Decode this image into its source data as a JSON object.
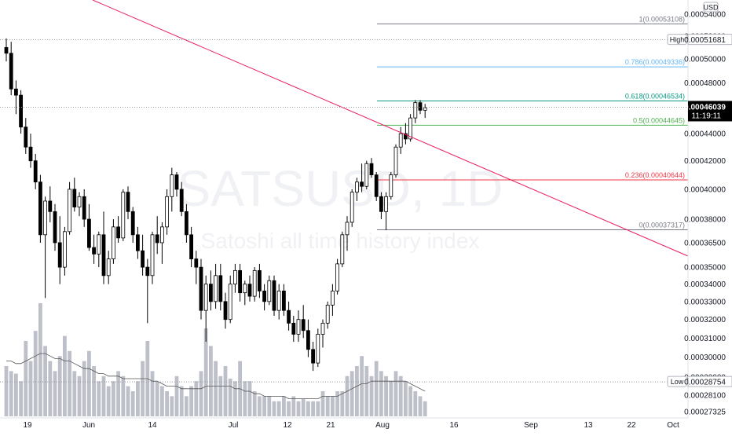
{
  "chart_data": {
    "type": "candlestick",
    "symbol_watermark": "SATSUSD, 1D",
    "watermark_subtitle": "Satoshi all time history index",
    "currency": "USD",
    "y_scale": "log",
    "y_ticks": [
      "0.00054000",
      "0.00052000",
      "0.00050000",
      "0.00048000",
      "0.00044000",
      "0.00042000",
      "0.00040000",
      "0.00038000",
      "0.00036500",
      "0.00035000",
      "0.00034000",
      "0.00033000",
      "0.00032000",
      "0.00031000",
      "0.00030000",
      "0.00029000",
      "0.00028100",
      "0.00027325"
    ],
    "x_labels": [
      "19",
      "Jun",
      "14",
      "Jul",
      "12",
      "21",
      "Aug",
      "16",
      "Sep",
      "13",
      "22",
      "Oct"
    ],
    "last_price": {
      "value": "0.00046039",
      "countdown": "11:19:11"
    },
    "high": {
      "label": "High",
      "value": "0.00051681"
    },
    "low": {
      "label": "Low",
      "value": "0.00028754"
    },
    "fib_levels": [
      {
        "ratio": "1",
        "value": "0.00053108",
        "color": "#787b86",
        "text": "1(0.00053108)"
      },
      {
        "ratio": "0.786",
        "value": "0.00049336",
        "color": "#64b5f6",
        "text": "0.786(0.00049336)"
      },
      {
        "ratio": "0.618",
        "value": "0.00046534",
        "color": "#089981",
        "text": "0.618(0.00046534)"
      },
      {
        "ratio": "0.5",
        "value": "0.00044645",
        "color": "#4caf50",
        "text": "0.5(0.00044645)"
      },
      {
        "ratio": "0.236",
        "value": "0.00040644",
        "color": "#f23645",
        "text": "0.236(0.00040644)"
      },
      {
        "ratio": "0",
        "value": "0.00037317",
        "color": "#787b86",
        "text": "0(0.00037317)"
      }
    ],
    "trendline_color": "#e91e63",
    "candle_up_color": "#ffffff",
    "candle_down_color": "#000000",
    "volume_color": "#b2b5be",
    "candles": [
      [
        0.00051,
        0.000518,
        0.000498,
        0.000505
      ],
      [
        0.000505,
        0.000515,
        0.00047,
        0.000475
      ],
      [
        0.000475,
        0.000482,
        0.000455,
        0.00047
      ],
      [
        0.00047,
        0.000474,
        0.00044,
        0.000445
      ],
      [
        0.000445,
        0.000452,
        0.000425,
        0.00043
      ],
      [
        0.00043,
        0.00044,
        0.000415,
        0.00042
      ],
      [
        0.00042,
        0.000425,
        0.0004,
        0.000405
      ],
      [
        0.000405,
        0.00041,
        0.000365,
        0.00037
      ],
      [
        0.00037,
        0.000395,
        0.000332,
        0.000392
      ],
      [
        0.000392,
        0.000402,
        0.000378,
        0.000385
      ],
      [
        0.000385,
        0.00039,
        0.00036,
        0.000365
      ],
      [
        0.000365,
        0.000382,
        0.00034,
        0.00035
      ],
      [
        0.00035,
        0.000375,
        0.000345,
        0.000372
      ],
      [
        0.000372,
        0.000405,
        0.00037,
        0.0004
      ],
      [
        0.0004,
        0.000408,
        0.000385,
        0.000388
      ],
      [
        0.000388,
        0.000398,
        0.000382,
        0.000395
      ],
      [
        0.000395,
        0.0004,
        0.000375,
        0.00038
      ],
      [
        0.00038,
        0.00039,
        0.00036,
        0.000362
      ],
      [
        0.000362,
        0.00037,
        0.000352,
        0.000358
      ],
      [
        0.000358,
        0.000372,
        0.00035,
        0.00037
      ],
      [
        0.00037,
        0.000385,
        0.00034,
        0.000345
      ],
      [
        0.000345,
        0.00036,
        0.00034,
        0.000355
      ],
      [
        0.000355,
        0.00038,
        0.000352,
        0.000375
      ],
      [
        0.000375,
        0.000382,
        0.000365,
        0.000368
      ],
      [
        0.000368,
        0.0004,
        0.000366,
        0.000398
      ],
      [
        0.000398,
        0.000402,
        0.00038,
        0.000385
      ],
      [
        0.000385,
        0.000388,
        0.000365,
        0.00037
      ],
      [
        0.00037,
        0.000375,
        0.000355,
        0.00036
      ],
      [
        0.00036,
        0.00037,
        0.000345,
        0.00035
      ],
      [
        0.00035,
        0.000355,
        0.000318,
        0.000345
      ],
      [
        0.000345,
        0.000372,
        0.00034,
        0.00037
      ],
      [
        0.00037,
        0.000382,
        0.000358,
        0.000365
      ],
      [
        0.000365,
        0.000378,
        0.000352,
        0.000375
      ],
      [
        0.000375,
        0.0004,
        0.00037,
        0.000395
      ],
      [
        0.000395,
        0.000415,
        0.000385,
        0.00041
      ],
      [
        0.00041,
        0.000412,
        0.000395,
        0.0004
      ],
      [
        0.0004,
        0.000405,
        0.000382,
        0.000385
      ],
      [
        0.000385,
        0.00039,
        0.000365,
        0.00037
      ],
      [
        0.00037,
        0.000375,
        0.00035,
        0.000355
      ],
      [
        0.000355,
        0.00036,
        0.00034,
        0.00035
      ],
      [
        0.00035,
        0.000355,
        0.00032,
        0.000325
      ],
      [
        0.000325,
        0.000345,
        0.000308,
        0.00034
      ],
      [
        0.00034,
        0.000348,
        0.000325,
        0.00033
      ],
      [
        0.00033,
        0.000352,
        0.000326,
        0.000345
      ],
      [
        0.000345,
        0.000352,
        0.000325,
        0.00033
      ],
      [
        0.00033,
        0.000335,
        0.000315,
        0.00032
      ],
      [
        0.00032,
        0.000345,
        0.000318,
        0.00034
      ],
      [
        0.00034,
        0.000352,
        0.000335,
        0.000348
      ],
      [
        0.000348,
        0.000352,
        0.00033,
        0.000335
      ],
      [
        0.000335,
        0.000342,
        0.000328,
        0.00034
      ],
      [
        0.00034,
        0.000345,
        0.00033,
        0.000333
      ],
      [
        0.000333,
        0.00035,
        0.00033,
        0.000348
      ],
      [
        0.000348,
        0.000352,
        0.000332,
        0.000336
      ],
      [
        0.000336,
        0.00034,
        0.000325,
        0.00033
      ],
      [
        0.00033,
        0.000345,
        0.000328,
        0.000342
      ],
      [
        0.000342,
        0.000345,
        0.000322,
        0.000325
      ],
      [
        0.000325,
        0.00034,
        0.00032,
        0.000336
      ],
      [
        0.000336,
        0.00034,
        0.000322,
        0.000325
      ],
      [
        0.000325,
        0.00033,
        0.000314,
        0.000318
      ],
      [
        0.000318,
        0.000322,
        0.000308,
        0.000312
      ],
      [
        0.000312,
        0.000325,
        0.000308,
        0.00032
      ],
      [
        0.00032,
        0.000328,
        0.00031,
        0.000314
      ],
      [
        0.000314,
        0.00032,
        0.0003,
        0.000304
      ],
      [
        0.000304,
        0.000308,
        0.000293,
        0.000297
      ],
      [
        0.000297,
        0.000315,
        0.000295,
        0.000312
      ],
      [
        0.000312,
        0.00032,
        0.000305,
        0.000318
      ],
      [
        0.000318,
        0.00033,
        0.000315,
        0.000328
      ],
      [
        0.000328,
        0.00034,
        0.000322,
        0.000336
      ],
      [
        0.000336,
        0.000355,
        0.000334,
        0.000352
      ],
      [
        0.000352,
        0.000372,
        0.00035,
        0.00037
      ],
      [
        0.00037,
        0.000382,
        0.00036,
        0.000378
      ],
      [
        0.000378,
        0.0004,
        0.000375,
        0.000398
      ],
      [
        0.000398,
        0.000408,
        0.000392,
        0.000405
      ],
      [
        0.000405,
        0.000418,
        0.000398,
        0.000402
      ],
      [
        0.000402,
        0.00042,
        0.0004,
        0.000418
      ],
      [
        0.000418,
        0.000422,
        0.000408,
        0.00041
      ],
      [
        0.00041,
        0.000412,
        0.000392,
        0.000395
      ],
      [
        0.000395,
        0.000398,
        0.00038,
        0.000385
      ],
      [
        0.000385,
        0.000398,
        0.000373,
        0.000395
      ],
      [
        0.000395,
        0.000412,
        0.000393,
        0.00041
      ],
      [
        0.00041,
        0.000432,
        0.000408,
        0.00043
      ],
      [
        0.00043,
        0.000445,
        0.000425,
        0.00044
      ],
      [
        0.00044,
        0.000448,
        0.000432,
        0.000436
      ],
      [
        0.000436,
        0.000455,
        0.000434,
        0.000452
      ],
      [
        0.000452,
        0.000466,
        0.000448,
        0.000464
      ],
      [
        0.000464,
        0.000466,
        0.000455,
        0.000458
      ],
      [
        0.000458,
        0.000463,
        0.000452,
        0.00046
      ]
    ],
    "volume": [
      20,
      18,
      17,
      14,
      30,
      22,
      34,
      45,
      28,
      22,
      18,
      24,
      32,
      26,
      18,
      16,
      22,
      26,
      20,
      14,
      16,
      12,
      14,
      18,
      16,
      12,
      10,
      14,
      22,
      30,
      18,
      14,
      12,
      10,
      8,
      16,
      12,
      8,
      12,
      14,
      18,
      35,
      28,
      22,
      16,
      20,
      15,
      14,
      22,
      14,
      14,
      10,
      8,
      8,
      8,
      6,
      6,
      8,
      6,
      8,
      6,
      7,
      6,
      6,
      6,
      10,
      8,
      8,
      10,
      10,
      16,
      18,
      20,
      24,
      20,
      16,
      22,
      18,
      16,
      14,
      18,
      16,
      14,
      12,
      10,
      8,
      6
    ],
    "volume_ma": [
      22,
      22,
      21,
      21,
      22,
      23,
      24,
      25,
      25,
      24,
      23,
      23,
      22,
      22,
      21,
      20,
      19,
      19,
      18,
      17,
      17,
      16,
      16,
      16,
      15,
      15,
      15,
      15,
      15,
      15,
      14,
      14,
      13,
      12,
      12,
      12,
      11,
      11,
      11,
      11,
      11,
      12,
      12,
      12,
      12,
      12,
      12,
      11,
      11,
      10,
      10,
      9,
      9,
      8,
      8,
      8,
      8,
      8,
      7,
      7,
      7,
      7,
      7,
      7,
      7,
      8,
      8,
      8,
      8,
      9,
      10,
      11,
      12,
      13,
      13,
      14,
      14,
      14,
      14,
      14,
      14,
      14,
      14,
      13,
      12,
      11,
      10
    ]
  }
}
